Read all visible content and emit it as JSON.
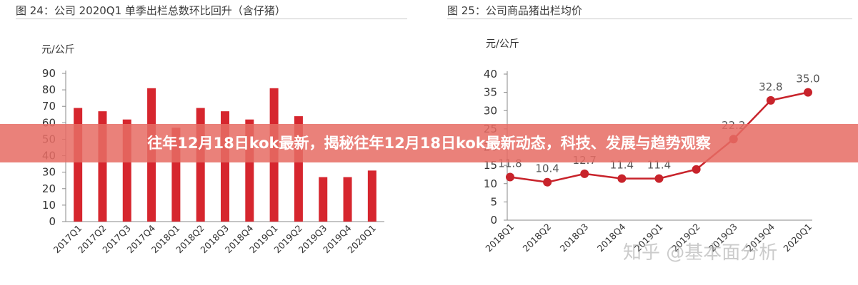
{
  "banner": {
    "title": "往年12月18日kok最新，揭秘往年12月18日kok最新动态，科技、发展与趋势观察"
  },
  "watermark": "知乎 @基本面分析",
  "chart_data": [
    {
      "type": "bar",
      "title": "图 24：公司 2020Q1 单季出栏总数环比回升（含仔猪）",
      "ylabel": "元/公斤",
      "xlabel": "",
      "ylim": [
        0,
        90
      ],
      "yticks": [
        0,
        10,
        20,
        30,
        40,
        50,
        60,
        70,
        80,
        90
      ],
      "grid": false,
      "color": "#d6262e",
      "categories": [
        "2017Q1",
        "2017Q2",
        "2017Q3",
        "2017Q4",
        "2018Q1",
        "2018Q2",
        "2018Q3",
        "2018Q4",
        "2019Q1",
        "2019Q2",
        "2019Q3",
        "2019Q4",
        "2020Q1"
      ],
      "values": [
        69,
        67,
        62,
        81,
        57,
        69,
        67,
        62,
        81,
        64,
        27,
        27,
        31
      ]
    },
    {
      "type": "line",
      "title": "图 25：公司商品猪出栏均价",
      "ylabel": "元/公斤",
      "xlabel": "",
      "ylim": [
        0,
        40
      ],
      "yticks": [
        0,
        5,
        10,
        15,
        20,
        25,
        30,
        35,
        40
      ],
      "grid": false,
      "color": "#c8232b",
      "categories": [
        "2018Q1",
        "2018Q2",
        "2018Q3",
        "2018Q4",
        "2019Q1",
        "2019Q2",
        "2019Q3",
        "2019Q4",
        "2020Q1"
      ],
      "values": [
        11.8,
        10.4,
        12.7,
        11.4,
        11.4,
        13.9,
        22.2,
        32.8,
        35.0
      ],
      "labels": [
        "11.8",
        "10.4",
        "12.7",
        "11.4",
        "11.4",
        "",
        "22.2",
        "32.8",
        "35.0"
      ]
    }
  ]
}
